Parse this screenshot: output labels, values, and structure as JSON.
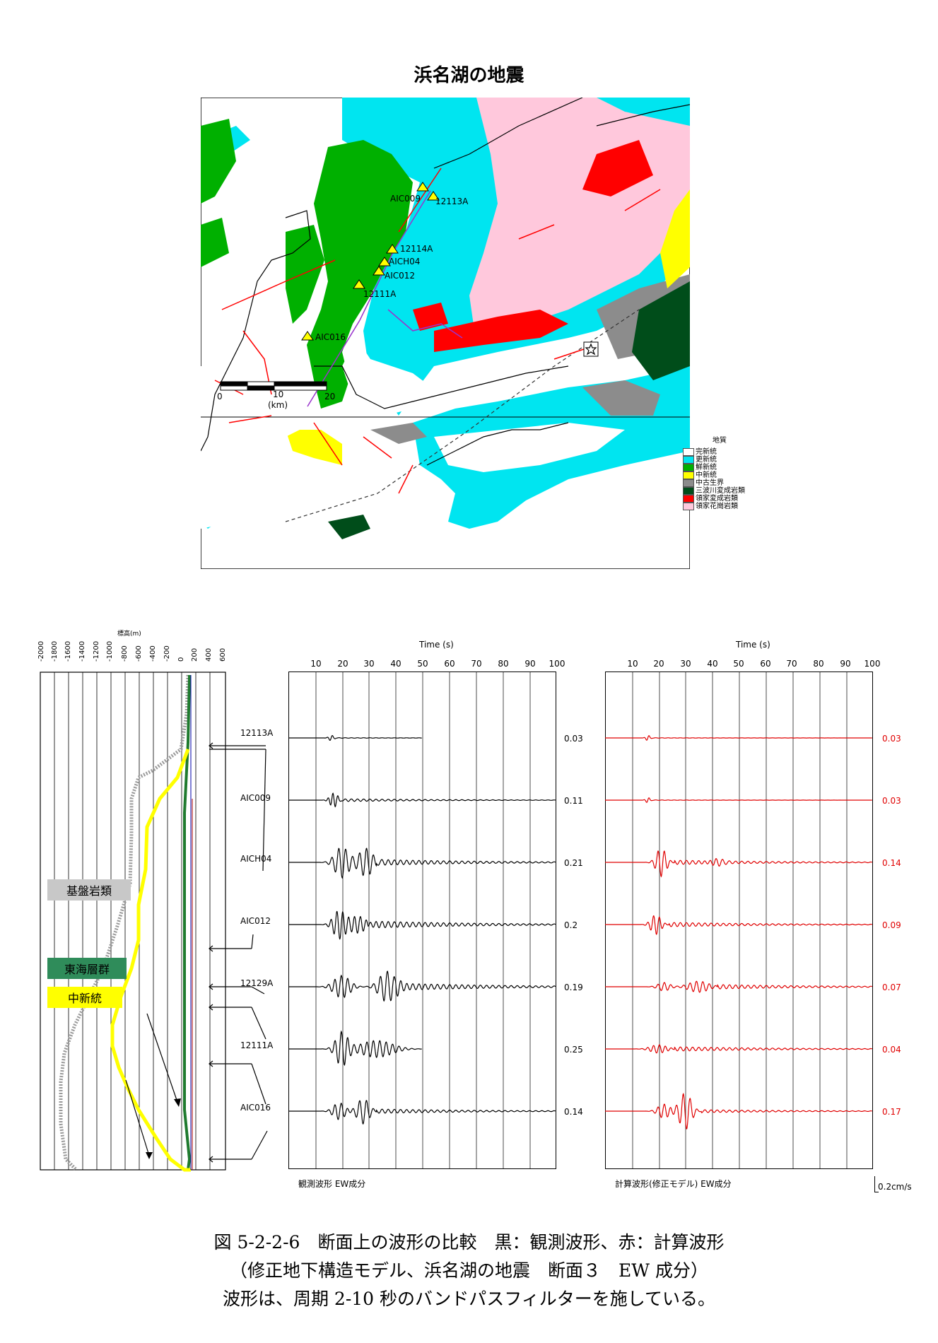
{
  "figure_title": "浜名湖の地震",
  "map": {
    "stations": [
      "AIC009",
      "12113A",
      "12114A",
      "AICH04",
      "AIC012",
      "12111A",
      "AIC016"
    ],
    "scale_ticks": [
      "0",
      "10",
      "20"
    ],
    "scale_unit": "(km)",
    "legend_title": "地質",
    "legend": [
      {
        "label": "完新統",
        "color": "#ffffff"
      },
      {
        "label": "更新統",
        "color": "#00e5f0"
      },
      {
        "label": "鮮新統",
        "color": "#00b000"
      },
      {
        "label": "中新統",
        "color": "#ffff00"
      },
      {
        "label": "中古生界",
        "color": "#8c8c8c"
      },
      {
        "label": "三波川変成岩類",
        "color": "#004d1a"
      },
      {
        "label": "領家変成岩類",
        "color": "#ff0000"
      },
      {
        "label": "領家花崗岩類",
        "color": "#ffc8dc"
      }
    ]
  },
  "profile": {
    "axis_title": "標高(m)",
    "ticks": [
      "-2000",
      "-1800",
      "-1600",
      "-1400",
      "-1200",
      "-1000",
      "-800",
      "-600",
      "-400",
      "-200",
      "0",
      "200",
      "400",
      "600"
    ],
    "tags": [
      {
        "label": "基盤岩類",
        "color": "#c8c8c8",
        "text_color": "#000000"
      },
      {
        "label": "東海層群",
        "color": "#2f8c5a",
        "text_color": "#000000"
      },
      {
        "label": "中新統",
        "color": "#ffff00",
        "text_color": "#000000"
      }
    ]
  },
  "waveforms": {
    "time_label": "Time (s)",
    "time_ticks": [
      "10",
      "20",
      "30",
      "40",
      "50",
      "60",
      "70",
      "80",
      "90",
      "100"
    ],
    "stations": [
      "12113A",
      "AIC009",
      "AICH04",
      "AIC012",
      "12129A",
      "12111A",
      "AIC016"
    ],
    "observed_amps": [
      "0.03",
      "0.11",
      "0.21",
      "0.2",
      "0.19",
      "0.25",
      "0.14"
    ],
    "computed_amps": [
      "0.03",
      "0.03",
      "0.14",
      "0.09",
      "0.07",
      "0.04",
      "0.17"
    ],
    "observed_label": "観測波形 EW成分",
    "computed_label": "計算波形(修正モデル) EW成分",
    "scale_label": "0.2cm/s"
  },
  "caption": {
    "line1": "図 5-2-2-6　断面上の波形の比較　黒：観測波形、赤：計算波形",
    "line2": "（修正地下構造モデル、浜名湖の地震　断面３　EW 成分）",
    "line3": "波形は、周期 2-10 秒のバンドパスフィルターを施している。"
  }
}
